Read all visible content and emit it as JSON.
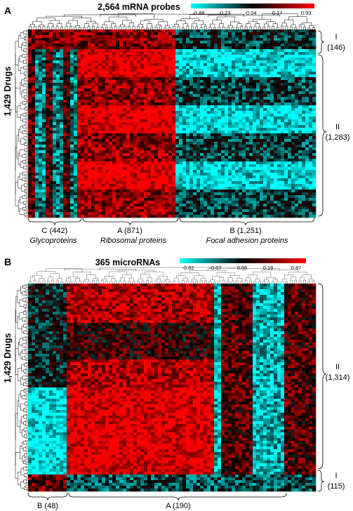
{
  "chart_data": [
    {
      "type": "heatmap",
      "panel_label": "A",
      "title": "2,564 mRNA probes",
      "ylabel": "1,429 Drugs",
      "colorbar": {
        "ticks": [
          "-0.88",
          "-0.23",
          "-0.04",
          "0.17",
          "0.93"
        ],
        "colors": [
          "#00ffff",
          "#000000",
          "#ff0000"
        ]
      },
      "column_clusters": [
        {
          "name": "C (442)",
          "annotation": "Glycoproteins",
          "size": 442
        },
        {
          "name": "A (871)",
          "annotation": "Ribosomal proteins",
          "size": 871
        },
        {
          "name": "B (1,251)",
          "annotation": "Focal adhesion proteins",
          "size": 1251
        }
      ],
      "row_clusters": [
        {
          "name": "I",
          "count_label": "(146)",
          "size": 146
        },
        {
          "name": "II",
          "count_label": "(1,283)",
          "size": 1283
        }
      ]
    },
    {
      "type": "heatmap",
      "panel_label": "B",
      "title": "365 microRNAs",
      "ylabel": "1,429 Drugs",
      "colorbar": {
        "ticks": [
          "-0.82",
          "-0.07",
          "0.06",
          "0.19",
          "0.87"
        ],
        "colors": [
          "#00ffff",
          "#000000",
          "#ff0000"
        ]
      },
      "column_clusters": [
        {
          "name": "B (48)",
          "size": 48
        },
        {
          "name": "A (190)",
          "size": 190
        }
      ],
      "row_clusters": [
        {
          "name": "II",
          "count_label": "(1,314)",
          "size": 1314
        },
        {
          "name": "I",
          "count_label": "(115)",
          "size": 115
        }
      ]
    }
  ]
}
